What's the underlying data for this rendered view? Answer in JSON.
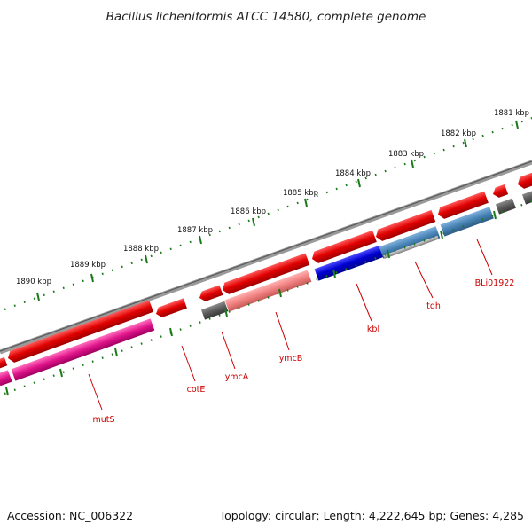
{
  "title": "Bacillus licheniformis ATCC 14580, complete genome",
  "footer": {
    "accession": "Accession: NC_006322",
    "topology": "Topology: circular; Length: 4,222,645 bp; Genes: 4,285"
  },
  "tick_labels": [
    "1881 kbp",
    "1882 kbp",
    "1883 kbp",
    "1884 kbp",
    "1885 kbp",
    "1886 kbp",
    "1887 kbp",
    "1888 kbp",
    "1889 kbp",
    "1890 kbp"
  ],
  "gene_labels": [
    "BLi01922",
    "tdh",
    "kbl",
    "ymcB",
    "ymcA",
    "cotE",
    "mutS"
  ],
  "colors": {
    "backbone": "#808080",
    "cds_forward": "#e60000",
    "cds_reverse_magenta": "#e0148a",
    "kbl_blue": "#0000d0",
    "tdh_steelblue": "#4682b4",
    "ymcB_pink": "#f08080",
    "other_gray": "#606060",
    "ticks": "#1a7a1a",
    "labels": "#cc0000"
  }
}
